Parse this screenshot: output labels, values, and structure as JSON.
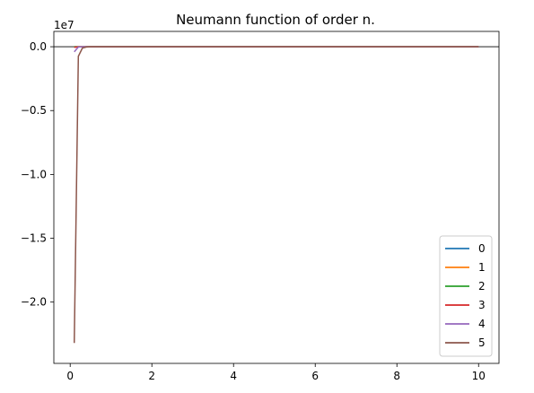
{
  "chart_data": {
    "type": "line",
    "title": "Neumann function of order n.",
    "xlabel": "",
    "ylabel": "",
    "xlim": [
      -0.4,
      10.5
    ],
    "ylim": [
      -24.8,
      1.2
    ],
    "y_multiplier_label": "1e7",
    "x_ticks": [
      0,
      2,
      4,
      6,
      8,
      10
    ],
    "x_tick_labels": [
      "0",
      "2",
      "4",
      "6",
      "8",
      "10"
    ],
    "y_ticks": [
      0,
      -5,
      -10,
      -15,
      -20
    ],
    "y_tick_labels": [
      "0.0",
      "−0.5",
      "−1.0",
      "−1.5",
      "−2.0"
    ],
    "grid": false,
    "zero_line": true,
    "legend_placement": "lower-right",
    "series": [
      {
        "name": "0",
        "color": "#1f77b4",
        "x": [
          0.1,
          0.2,
          0.3,
          0.5,
          1,
          2,
          4,
          6,
          8,
          10
        ],
        "y": [
          0,
          0,
          0,
          0,
          0,
          0,
          0,
          0,
          0,
          0
        ]
      },
      {
        "name": "1",
        "color": "#ff7f0e",
        "x": [
          0.1,
          0.2,
          0.3,
          0.5,
          1,
          2,
          4,
          6,
          8,
          10
        ],
        "y": [
          0,
          0,
          0,
          0,
          0,
          0,
          0,
          0,
          0,
          0
        ]
      },
      {
        "name": "2",
        "color": "#2ca02c",
        "x": [
          0.1,
          0.2,
          0.3,
          0.5,
          1,
          2,
          4,
          6,
          8,
          10
        ],
        "y": [
          0,
          0,
          0,
          0,
          0,
          0,
          0,
          0,
          0,
          0
        ]
      },
      {
        "name": "3",
        "color": "#d62728",
        "x": [
          0.1,
          0.2,
          0.3,
          0.5,
          1,
          2,
          4,
          6,
          8,
          10
        ],
        "y": [
          -0.05,
          0,
          0,
          0,
          0,
          0,
          0,
          0,
          0,
          0
        ]
      },
      {
        "name": "4",
        "color": "#9467bd",
        "x": [
          0.1,
          0.2,
          0.3,
          0.5,
          1,
          2,
          4,
          6,
          8,
          10
        ],
        "y": [
          -0.4,
          -0.02,
          0,
          0,
          0,
          0,
          0,
          0,
          0,
          0
        ]
      },
      {
        "name": "5",
        "color": "#8c564b",
        "x": [
          0.1,
          0.2,
          0.3,
          0.4,
          0.5,
          1,
          2,
          4,
          6,
          8,
          10
        ],
        "y": [
          -23.2,
          -0.75,
          -0.1,
          -0.02,
          0,
          0,
          0,
          0,
          0,
          0,
          0
        ]
      }
    ]
  }
}
